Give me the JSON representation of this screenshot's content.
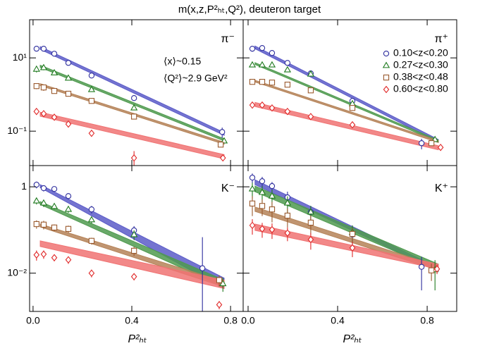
{
  "title": "m(x,z,P²ₕₜ,Q²), deuteron target",
  "x_label": "P²ₕₜ",
  "chart_data": [
    {
      "type": "scatter",
      "label": "π⁻",
      "log_y": true,
      "annotations": [
        "⟨x⟩~0.15",
        "⟨Q²⟩~2.9 GeV²"
      ],
      "xlim": [
        -0.014,
        0.851
      ],
      "xticks": [
        0,
        0.4,
        0.8
      ],
      "ylim": [
        0.0115,
        110
      ],
      "yticks": [
        {
          "value": 10,
          "label": "10¹"
        },
        {
          "value": 0.1,
          "label": "10⁻¹"
        }
      ],
      "series": [
        {
          "marker": "circle",
          "color": "#2e2e9e",
          "band_color": "#5c5cc8",
          "x": [
            0.014,
            0.043,
            0.086,
            0.143,
            0.237,
            0.409,
            0.766
          ],
          "values": [
            17.8,
            17.8,
            13.0,
            7.3,
            3.3,
            0.8,
            0.095
          ],
          "errors": [
            1.5,
            1.5,
            1.0,
            0.6,
            0.3,
            0.08,
            0.03
          ],
          "band": {
            "x": [
              0.029,
              0.774
            ],
            "lower": [
              17.1,
              0.077
            ],
            "upper": [
              20.3,
              0.092
            ]
          }
        },
        {
          "marker": "triangle",
          "color": "#1f7a1f",
          "band_color": "#4f9a4f",
          "x": [
            0.014,
            0.043,
            0.086,
            0.143,
            0.237,
            0.409,
            0.774
          ],
          "values": [
            4.9,
            5.4,
            3.9,
            2.8,
            1.36,
            0.43,
            0.054
          ],
          "errors": [
            0.9,
            0.8,
            0.3,
            0.2,
            0.1,
            0.04,
            0.006
          ],
          "band": {
            "x": [
              0.029,
              0.774
            ],
            "lower": [
              5.5,
              0.054
            ],
            "upper": [
              6.3,
              0.062
            ]
          }
        },
        {
          "marker": "square",
          "color": "#9a5a2e",
          "band_color": "#b58358",
          "x": [
            0.014,
            0.043,
            0.086,
            0.143,
            0.237,
            0.409,
            0.76
          ],
          "values": [
            1.7,
            1.56,
            1.25,
            1.05,
            0.67,
            0.25,
            0.043
          ],
          "errors": [
            0.3,
            0.3,
            0.15,
            0.08,
            0.05,
            0.02,
            0.004
          ],
          "band": {
            "x": [
              0.029,
              0.774
            ],
            "lower": [
              1.75,
              0.044
            ],
            "upper": [
              1.98,
              0.05
            ]
          }
        },
        {
          "marker": "diamond",
          "color": "#e02828",
          "band_color": "#f07373",
          "x": [
            0.014,
            0.043,
            0.086,
            0.143,
            0.237,
            0.409,
            0.769
          ],
          "values": [
            0.345,
            0.3,
            0.24,
            0.156,
            0.0875,
            0.0186,
            0.0186
          ],
          "errors": [
            0.03,
            0.03,
            0.03,
            0.02,
            0.015,
            0.01,
            0.003
          ],
          "band": {
            "x": [
              0.029,
              0.774
            ],
            "lower": [
              0.255,
              0.0175
            ],
            "upper": [
              0.33,
              0.023
            ]
          }
        }
      ]
    },
    {
      "type": "scatter",
      "label": "π⁺",
      "log_y": true,
      "legend": "upper right",
      "xlim": [
        -0.022,
        0.932
      ],
      "xticks": [
        0,
        0.4,
        0.8
      ],
      "ylim": [
        0.0115,
        110
      ],
      "yticks": [
        10,
        0.1
      ],
      "series": [
        {
          "name": "0.10<z<0.20",
          "marker": "circle",
          "color": "#2e2e9e",
          "band_color": "#5c5cc8",
          "x": [
            0.019,
            0.063,
            0.107,
            0.176,
            0.28,
            0.466,
            0.775
          ],
          "values": [
            17.8,
            18.6,
            13.6,
            7.3,
            3.77,
            0.67,
            0.047
          ],
          "errors": [
            3,
            3,
            2,
            1,
            0.4,
            0.08,
            0.015
          ],
          "band": {
            "x": [
              0.031,
              0.85
            ],
            "lower": [
              17.8,
              0.05
            ],
            "upper": [
              21.1,
              0.059
            ]
          }
        },
        {
          "name": "0.27<z<0.30",
          "marker": "triangle",
          "color": "#1f7a1f",
          "band_color": "#4f9a4f",
          "x": [
            0.019,
            0.063,
            0.107,
            0.176,
            0.28,
            0.466,
            0.835
          ],
          "values": [
            6.4,
            6.4,
            6.4,
            4.7,
            3.6,
            0.56,
            0.059
          ],
          "errors": [
            0.8,
            0.5,
            0.4,
            0.3,
            0.2,
            0.05,
            0.008
          ],
          "band": {
            "x": [
              0.031,
              0.85
            ],
            "lower": [
              6.6,
              0.051
            ],
            "upper": [
              7.4,
              0.057
            ]
          }
        },
        {
          "name": "0.38<z<0.48",
          "marker": "square",
          "color": "#9a5a2e",
          "band_color": "#b58358",
          "x": [
            0.019,
            0.063,
            0.107,
            0.176,
            0.28,
            0.466,
            0.819
          ],
          "values": [
            2.22,
            2.22,
            2.12,
            1.86,
            1.3,
            0.43,
            0.047
          ],
          "errors": [
            0.2,
            0.2,
            0.15,
            0.1,
            0.08,
            0.04,
            0.006
          ],
          "band": {
            "x": [
              0.031,
              0.85
            ],
            "lower": [
              2.2,
              0.049
            ],
            "upper": [
              2.45,
              0.055
            ]
          }
        },
        {
          "name": "0.60<z<0.80",
          "marker": "diamond",
          "color": "#e02828",
          "band_color": "#f07373",
          "x": [
            0.019,
            0.063,
            0.107,
            0.176,
            0.28,
            0.466,
            0.86
          ],
          "values": [
            0.515,
            0.515,
            0.43,
            0.345,
            0.25,
            0.149,
            0.036
          ],
          "errors": [
            0.05,
            0.04,
            0.03,
            0.02,
            0.015,
            0.01,
            0.004
          ],
          "band": {
            "x": [
              0.031,
              0.85
            ],
            "lower": [
              0.47,
              0.031
            ],
            "upper": [
              0.61,
              0.04
            ]
          }
        }
      ]
    },
    {
      "type": "scatter",
      "label": "K⁻",
      "log_y": true,
      "xlim": [
        -0.014,
        0.851
      ],
      "xticks": [
        {
          "value": 0,
          "label": "0.0"
        },
        0.4,
        0.8
      ],
      "ylim": [
        0.0013,
        3.1
      ],
      "yticks": [
        1,
        {
          "value": 0.01,
          "label": "10⁻²"
        }
      ],
      "series": [
        {
          "marker": "circle",
          "color": "#2e2e9e",
          "band_color": "#5c5cc8",
          "x": [
            0.014,
            0.043,
            0.086,
            0.143,
            0.237,
            0.409,
            0.686
          ],
          "values": [
            1.12,
            0.93,
            0.89,
            0.61,
            0.3,
            0.098,
            0.013
          ],
          "errors": [
            0.2,
            0.15,
            0.1,
            0.1,
            0.06,
            0.025,
            0.055
          ],
          "band": {
            "x": [
              0.029,
              0.774
            ],
            "lower": [
              0.96,
              0.0044
            ],
            "upper": [
              1.12,
              0.0077
            ]
          }
        },
        {
          "marker": "triangle",
          "color": "#1f7a1f",
          "band_color": "#4f9a4f",
          "x": [
            0.014,
            0.043,
            0.086,
            0.143,
            0.237,
            0.409,
            0.769
          ],
          "values": [
            0.47,
            0.42,
            0.35,
            0.3,
            0.172,
            0.078,
            0.0057
          ],
          "errors": [
            0.08,
            0.08,
            0.05,
            0.05,
            0.03,
            0.02,
            0.002
          ],
          "band": {
            "x": [
              0.029,
              0.774
            ],
            "lower": [
              0.39,
              0.0048
            ],
            "upper": [
              0.455,
              0.0069
            ]
          }
        },
        {
          "marker": "square",
          "color": "#9a5a2e",
          "band_color": "#b58358",
          "x": [
            0.014,
            0.043,
            0.086,
            0.143,
            0.237,
            0.409,
            0.754
          ],
          "values": [
            0.137,
            0.133,
            0.114,
            0.106,
            0.056,
            0.033,
            0.0069
          ],
          "errors": [
            0.03,
            0.03,
            0.02,
            0.02,
            0.01,
            0.008,
            0.002
          ],
          "band": {
            "x": [
              0.029,
              0.774
            ],
            "lower": [
              0.118,
              0.0048
            ],
            "upper": [
              0.137,
              0.0064
            ]
          }
        },
        {
          "marker": "diamond",
          "color": "#e02828",
          "band_color": "#f07373",
          "x": [
            0.014,
            0.043,
            0.086,
            0.143,
            0.237,
            0.409,
            0.754
          ],
          "values": [
            0.0265,
            0.0275,
            0.0228,
            0.0204,
            0.01,
            0.0083,
            0.00186
          ],
          "errors": [
            0.007,
            0.006,
            0.004,
            0.004,
            0.002,
            0.0015,
            0.0004
          ],
          "band": {
            "x": [
              0.029,
              0.774
            ],
            "lower": [
              0.0415,
              0.0044
            ],
            "upper": [
              0.056,
              0.0069
            ]
          }
        }
      ]
    },
    {
      "type": "scatter",
      "label": "K⁺",
      "log_y": true,
      "xlim": [
        -0.022,
        0.932
      ],
      "xticks": [
        {
          "value": 0,
          "label": "0.0"
        },
        0.4,
        0.8
      ],
      "ylim": [
        0.0013,
        3.1
      ],
      "yticks": [
        1,
        0.01
      ],
      "series": [
        {
          "marker": "circle",
          "color": "#2e2e9e",
          "band_color": "#5c5cc8",
          "x": [
            0.019,
            0.063,
            0.107,
            0.176,
            0.28,
            0.466,
            0.775
          ],
          "values": [
            1.63,
            1.35,
            1.04,
            0.57,
            0.26,
            0.078,
            0.014
          ],
          "errors": [
            0.4,
            0.35,
            0.25,
            0.2,
            0.1,
            0.04,
            0.01
          ],
          "band": {
            "x": [
              0.031,
              0.85
            ],
            "lower": [
              1.12,
              0.0112
            ],
            "upper": [
              1.45,
              0.0134
            ]
          }
        },
        {
          "marker": "triangle",
          "color": "#1f7a1f",
          "band_color": "#4f9a4f",
          "x": [
            0.019,
            0.063,
            0.107,
            0.176,
            0.28,
            0.466,
            0.835
          ],
          "values": [
            0.89,
            0.74,
            0.61,
            0.42,
            0.26,
            0.088,
            0.012
          ],
          "errors": [
            0.35,
            0.3,
            0.25,
            0.18,
            0.1,
            0.04,
            0.008
          ],
          "band": {
            "x": [
              0.031,
              0.85
            ],
            "lower": [
              0.77,
              0.012
            ],
            "upper": [
              1.04,
              0.0162
            ]
          }
        },
        {
          "marker": "square",
          "color": "#9a5a2e",
          "band_color": "#b58358",
          "x": [
            0.019,
            0.063,
            0.107,
            0.176,
            0.28,
            0.466,
            0.819
          ],
          "values": [
            0.41,
            0.36,
            0.3,
            0.215,
            0.148,
            0.081,
            0.0116
          ],
          "errors": [
            0.2,
            0.15,
            0.15,
            0.1,
            0.07,
            0.03,
            0.005
          ],
          "band": {
            "x": [
              0.031,
              0.85
            ],
            "lower": [
              0.27,
              0.0116
            ],
            "upper": [
              0.34,
              0.0145
            ]
          }
        },
        {
          "marker": "diamond",
          "color": "#e02828",
          "band_color": "#f07373",
          "x": [
            0.019,
            0.063,
            0.107,
            0.176,
            0.28,
            0.466,
            0.844
          ],
          "values": [
            0.128,
            0.106,
            0.102,
            0.085,
            0.06,
            0.0385,
            0.0125
          ],
          "errors": [
            0.05,
            0.04,
            0.04,
            0.03,
            0.025,
            0.015,
            0.003
          ],
          "band": {
            "x": [
              0.031,
              0.85
            ],
            "lower": [
              0.098,
              0.0125
            ],
            "upper": [
              0.137,
              0.0162
            ]
          }
        }
      ]
    }
  ]
}
